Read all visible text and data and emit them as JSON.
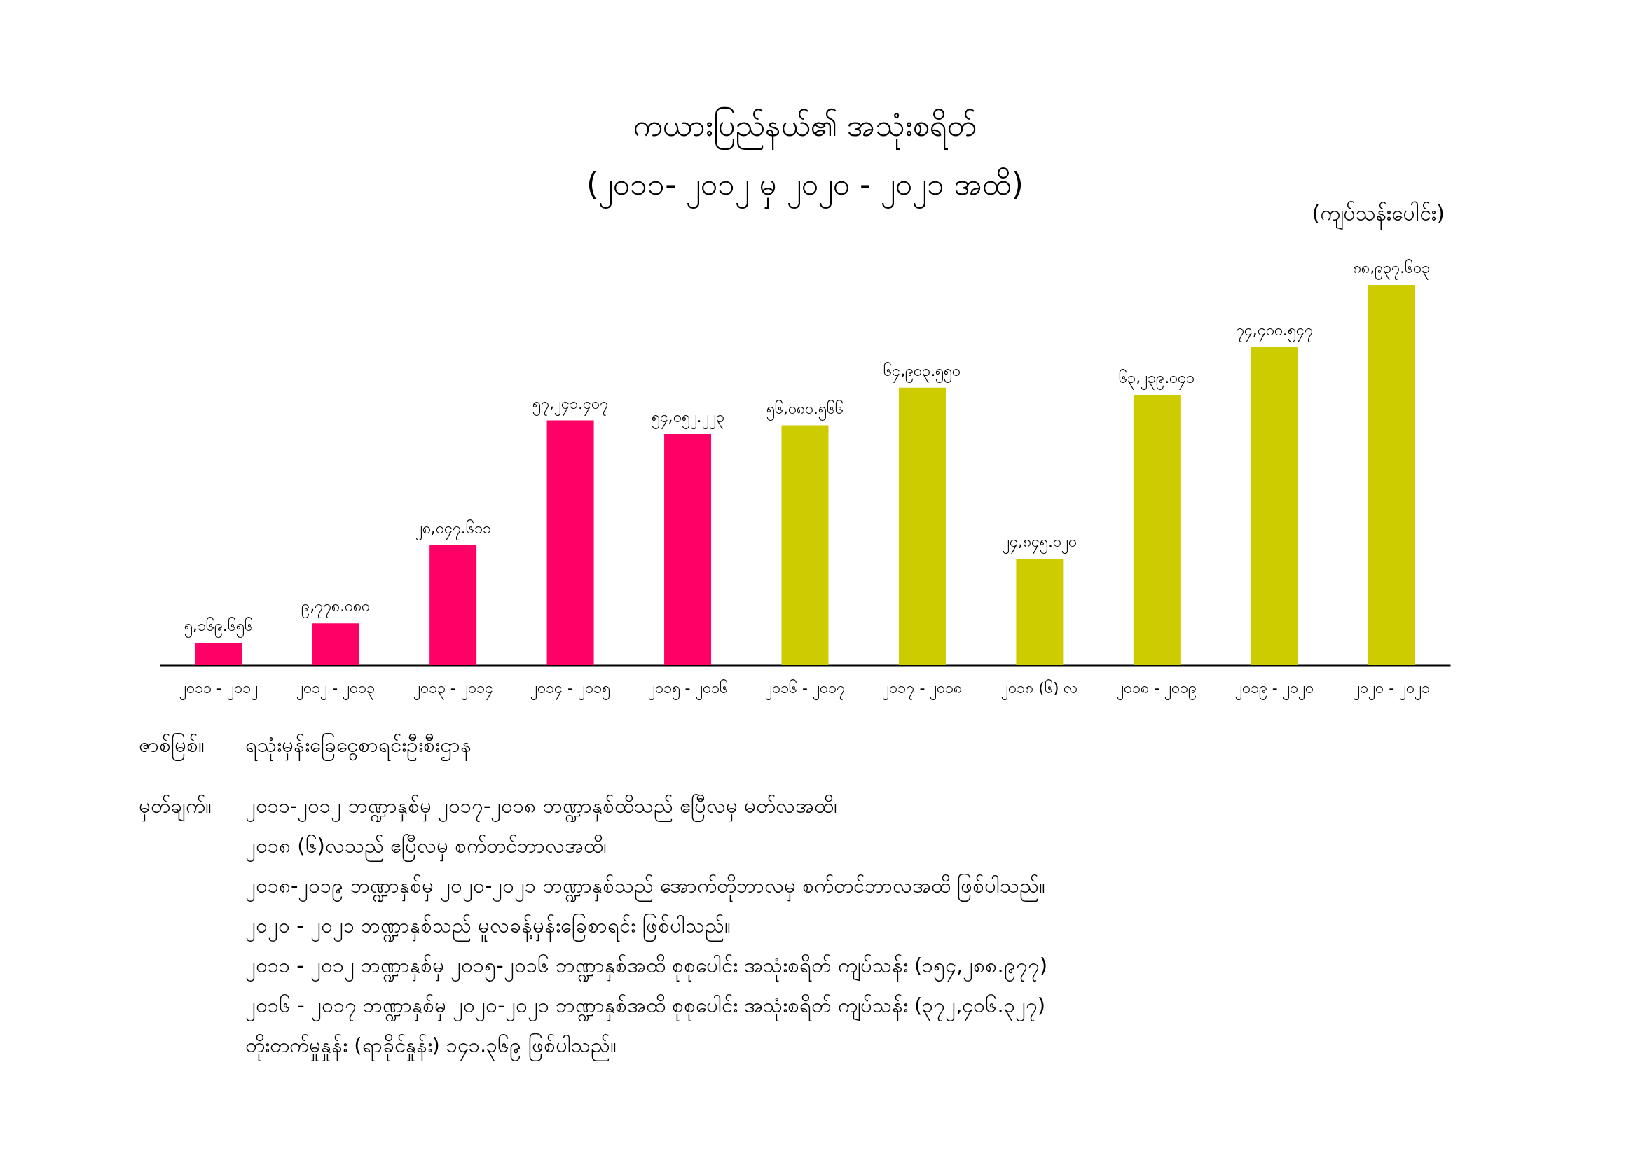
{
  "chart_data": {
    "type": "bar",
    "title": "ကယားပြည်နယ်၏ အသုံးစရိတ်",
    "subtitle": "(၂၀၁၁- ၂၀၁၂ မှ ၂၀၂၀ - ၂၀၂၁ အထိ)",
    "ylabel": "(ကျပ်သန်းပေါင်း)",
    "categories": [
      "၂၀၁၁ - ၂၀၁၂",
      "၂၀၁၂ - ၂၀၁၃",
      "၂၀၁၃ - ၂၀၁၄",
      "၂၀၁၄ - ၂၀၁၅",
      "၂၀၁၅ - ၂၀၁၆",
      "၂၀၁၆ - ၂၀၁၇",
      "၂၀၁၇ - ၂၀၁၈",
      "၂၀၁၈ (၆) လ",
      "၂၀၁၈ - ၂၀၁၉",
      "၂၀၁၉ - ၂၀၂၀",
      "၂၀၂၀ - ၂၀၂၁"
    ],
    "values": [
      5169.656,
      9778.08,
      28047.611,
      57241.407,
      54052.223,
      56080.566,
      64903.55,
      24845.02,
      63239.041,
      74400.547,
      88937.603
    ],
    "value_labels": [
      "၅,၁၆၉.၆၅၆",
      "၉,၇၇၈.၀၈၀",
      "၂၈,၀၄၇.၆၁၁",
      "၅၇,၂၄၁.၄၀၇",
      "၅၄,၀၅၂.၂၂၃",
      "၅၆,၀၈၀.၅၆၆",
      "၆၄,၉၀၃.၅၅၀",
      "၂၄,၈၄၅.၀၂၀",
      "၆၃,၂၃၉.၀၄၁",
      "၇၄,၄၀၀.၅၄၇",
      "၈၈,၉၃၇.၆၀၃"
    ],
    "colors": [
      "#ff0066",
      "#ff0066",
      "#ff0066",
      "#ff0066",
      "#ff0066",
      "#cccc00",
      "#cccc00",
      "#cccc00",
      "#cccc00",
      "#cccc00",
      "#cccc00"
    ],
    "annotations": [
      "ဇာစ်မြစ်။",
      "ရသုံးမှန်းခြေငွေစာရင်းဦးစီးဌာန",
      "မှတ်ချက်။",
      "၂၀၁၁-၂၀၁၂ ဘဏ္ဍာနှစ်မှ ၂၀၁၇-၂၀၁၈ ဘဏ္ဍာနှစ်ထိသည် ဧပြီလမှ မတ်လအထိ၊\n၂၀၁၈ (၆)လသည် ဧပြီလမှ စက်တင်ဘာလအထိ၊\n၂၀၁၈-၂၀၁၉ ဘဏ္ဍာနှစ်မှ ၂၀၂၀-၂၀၂၁ ဘဏ္ဍာနှစ်သည် အောက်တိုဘာလမှ စက်တင်ဘာလအထိ ဖြစ်ပါသည်။\n၂၀၂၀ - ၂၀၂၁ ဘဏ္ဍာနှစ်သည် မူလခန့်မှန်းခြေစာရင်း ဖြစ်ပါသည်။\n၂၀၁၁ - ၂၀၁၂ ဘဏ္ဍာနှစ်မှ ၂၀၁၅-၂၀၁၆ ဘဏ္ဍာနှစ်အထိ စုစုပေါင်း အသုံးစရိတ် ကျပ်သန်း (၁၅၄,၂၈၈.၉၇၇)\n၂၀၁၆ - ၂၀၁၇ ဘဏ္ဍာနှစ်မှ ၂၀၂၀-၂၀၂၁ ဘဏ္ဍာနှစ်အထိ စုစုပေါင်း အသုံးစရိတ် ကျပ်သန်း (၃၇၂,၄၀၆.၃၂၇)\nတိုးတက်မှုနှုန်း (ရာခိုင်နှုန်း) ၁၄၁.၃၆၉ ဖြစ်ပါသည်။"
    ]
  }
}
